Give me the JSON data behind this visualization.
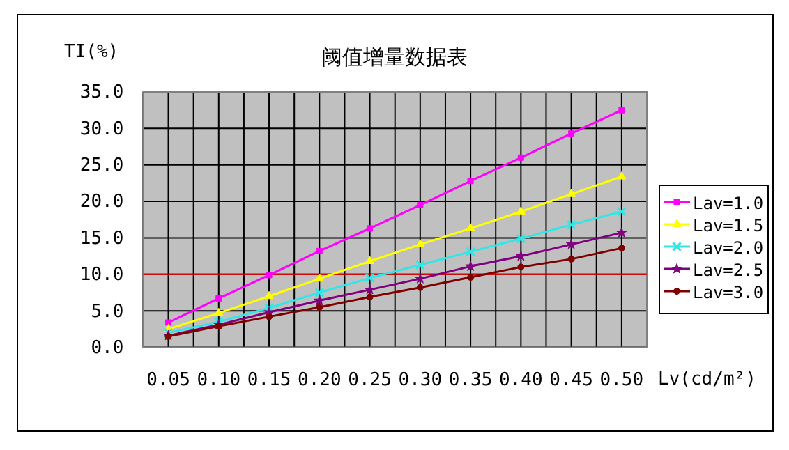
{
  "chart_data": {
    "type": "line",
    "title": "阈值增量数据表",
    "xlabel": "Lv(cd/m²)",
    "ylabel": "TI(%)",
    "categories": [
      "0.05",
      "0.10",
      "0.15",
      "0.20",
      "0.25",
      "0.30",
      "0.35",
      "0.40",
      "0.45",
      "0.50"
    ],
    "series": [
      {
        "name": "Lav=1.0",
        "color": "#ff00ff",
        "marker": "square",
        "values": [
          3.4,
          6.7,
          9.9,
          13.2,
          16.3,
          19.5,
          22.8,
          26.0,
          29.3,
          32.5
        ]
      },
      {
        "name": "Lav=1.5",
        "color": "#ffff00",
        "marker": "triangle",
        "values": [
          2.5,
          4.7,
          7.0,
          9.4,
          11.8,
          14.1,
          16.3,
          18.6,
          21.0,
          23.4
        ]
      },
      {
        "name": "Lav=2.0",
        "color": "#33e6e6",
        "marker": "cross",
        "values": [
          2.0,
          3.5,
          5.4,
          7.5,
          9.5,
          11.3,
          13.1,
          14.9,
          16.8,
          18.6
        ]
      },
      {
        "name": "Lav=2.5",
        "color": "#800080",
        "marker": "star",
        "values": [
          1.6,
          3.1,
          4.8,
          6.4,
          7.9,
          9.4,
          11.1,
          12.5,
          14.1,
          15.7
        ]
      },
      {
        "name": "Lav=3.0",
        "color": "#800000",
        "marker": "circle",
        "values": [
          1.5,
          2.9,
          4.2,
          5.5,
          6.9,
          8.2,
          9.6,
          11.0,
          12.1,
          13.6
        ]
      }
    ],
    "ylim": [
      0,
      35
    ],
    "yticks": [
      {
        "value": 0,
        "label": "0.0"
      },
      {
        "value": 5,
        "label": "5.0"
      },
      {
        "value": 10,
        "label": "10.0"
      },
      {
        "value": 15,
        "label": "15.0"
      },
      {
        "value": 20,
        "label": "20.0"
      },
      {
        "value": 25,
        "label": "25.0"
      },
      {
        "value": 30,
        "label": "30.0"
      },
      {
        "value": 35,
        "label": "35.0"
      }
    ],
    "ref_lines": [
      {
        "axis": "y",
        "value": 10,
        "color": "#ff0000"
      }
    ],
    "grid": true,
    "legend": "right"
  }
}
